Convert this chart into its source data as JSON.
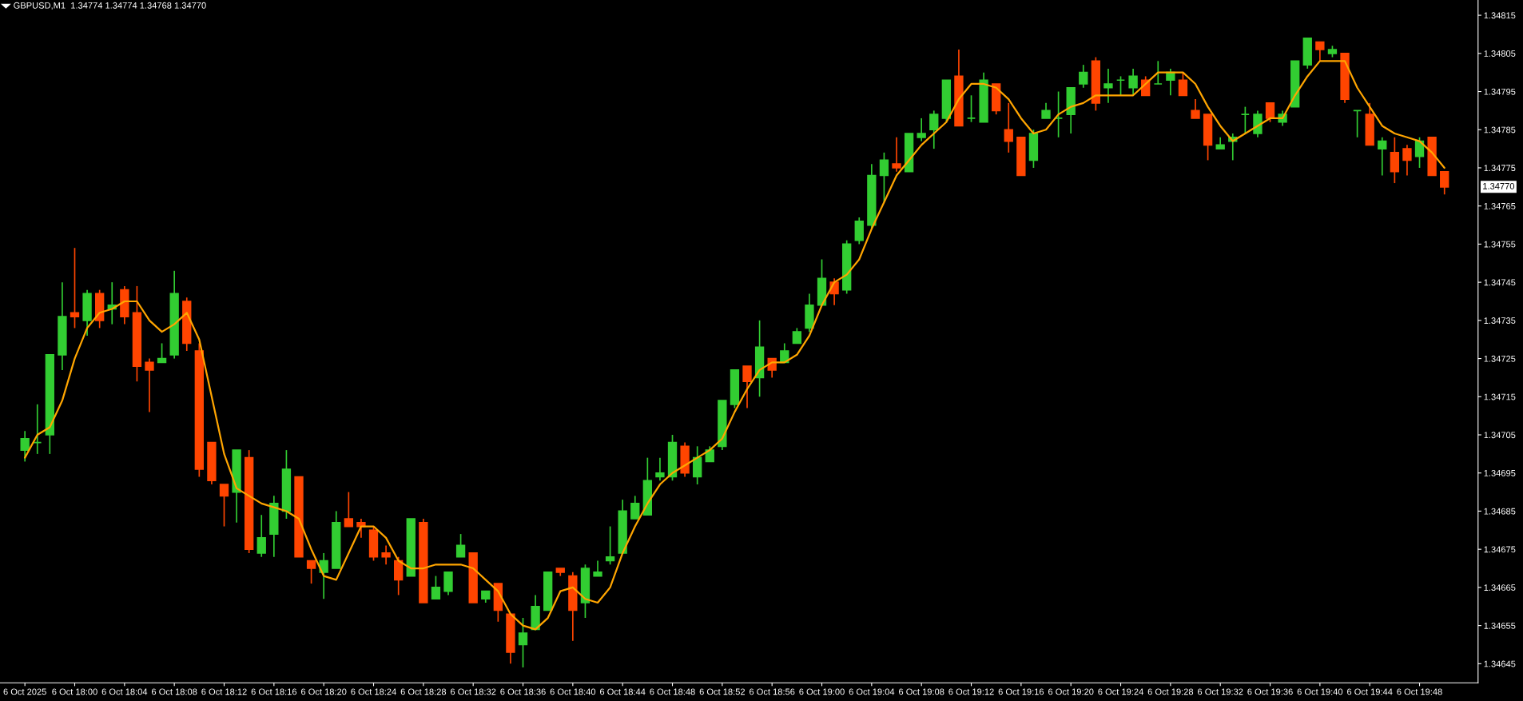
{
  "chart_data": {
    "type": "candlestick",
    "title": "GBPUSD,M1  1.34774 1.34774 1.34768 1.34770",
    "categories": [
      "6 Oct 2025",
      null,
      null,
      null,
      "6 Oct 18:00",
      null,
      null,
      null,
      "6 Oct 18:04",
      null,
      null,
      null,
      "6 Oct 18:08",
      null,
      null,
      null,
      "6 Oct 18:12",
      null,
      null,
      null,
      "6 Oct 18:16",
      null,
      null,
      null,
      "6 Oct 18:20",
      null,
      null,
      null,
      "6 Oct 18:24",
      null,
      null,
      null,
      "6 Oct 18:28",
      null,
      null,
      null,
      "6 Oct 18:32",
      null,
      null,
      null,
      "6 Oct 18:36",
      null,
      null,
      null,
      "6 Oct 18:40",
      null,
      null,
      null,
      "6 Oct 18:44",
      null,
      null,
      null,
      "6 Oct 18:48",
      null,
      null,
      null,
      "6 Oct 18:52",
      null,
      null,
      null,
      "6 Oct 18:56",
      null,
      null,
      null,
      "6 Oct 19:00",
      null,
      null,
      null,
      "6 Oct 19:04",
      null,
      null,
      null,
      "6 Oct 19:08",
      null,
      null,
      null,
      "6 Oct 19:12",
      null,
      null,
      null,
      "6 Oct 19:16",
      null,
      null,
      null,
      "6 Oct 19:20",
      null,
      null,
      null,
      "6 Oct 19:24",
      null,
      null,
      null,
      "6 Oct 19:28",
      null,
      null,
      null,
      "6 Oct 19:32",
      null,
      null,
      null,
      "6 Oct 19:36",
      null,
      null,
      null,
      "6 Oct 19:40",
      null,
      null,
      null,
      "6 Oct 19:44",
      null,
      null,
      null,
      "6 Oct 19:48",
      null,
      null
    ],
    "ohlc": [
      [
        1.34701,
        1.34706,
        1.34698,
        1.34704
      ],
      [
        1.34703,
        1.34713,
        1.347,
        1.34703
      ],
      [
        1.34705,
        1.34726,
        1.347,
        1.34726
      ],
      [
        1.34726,
        1.34745,
        1.34722,
        1.34736
      ],
      [
        1.34737,
        1.34754,
        1.34733,
        1.34736
      ],
      [
        1.34735,
        1.34743,
        1.34731,
        1.34742
      ],
      [
        1.34742,
        1.34743,
        1.34733,
        1.34735
      ],
      [
        1.34738,
        1.34745,
        1.34734,
        1.34739
      ],
      [
        1.34743,
        1.34744,
        1.34734,
        1.34736
      ],
      [
        1.34737,
        1.34744,
        1.34719,
        1.34723
      ],
      [
        1.34724,
        1.34725,
        1.34711,
        1.34722
      ],
      [
        1.34724,
        1.34729,
        1.34724,
        1.34725
      ],
      [
        1.34726,
        1.34748,
        1.34725,
        1.34742
      ],
      [
        1.3474,
        1.34741,
        1.34727,
        1.34729
      ],
      [
        1.34727,
        1.34729,
        1.34694,
        1.34696
      ],
      [
        1.34703,
        1.34703,
        1.34692,
        1.34693
      ],
      [
        1.34692,
        1.34692,
        1.34681,
        1.34689
      ],
      [
        1.3469,
        1.34701,
        1.34682,
        1.34701
      ],
      [
        1.34699,
        1.34701,
        1.34674,
        1.34675
      ],
      [
        1.34674,
        1.34684,
        1.34673,
        1.34678
      ],
      [
        1.34679,
        1.34689,
        1.34673,
        1.34687
      ],
      [
        1.34685,
        1.34701,
        1.34683,
        1.34696
      ],
      [
        1.34694,
        1.34694,
        1.34673,
        1.34673
      ],
      [
        1.34672,
        1.34672,
        1.34666,
        1.3467
      ],
      [
        1.34669,
        1.34674,
        1.34662,
        1.34672
      ],
      [
        1.3467,
        1.34685,
        1.3467,
        1.34682
      ],
      [
        1.34683,
        1.3469,
        1.34681,
        1.34681
      ],
      [
        1.34682,
        1.34683,
        1.34678,
        1.34681
      ],
      [
        1.3468,
        1.34681,
        1.34672,
        1.34673
      ],
      [
        1.34674,
        1.34676,
        1.34671,
        1.34673
      ],
      [
        1.34672,
        1.34673,
        1.34663,
        1.34667
      ],
      [
        1.34668,
        1.34683,
        1.34668,
        1.34683
      ],
      [
        1.34682,
        1.34683,
        1.34661,
        1.34661
      ],
      [
        1.34662,
        1.34668,
        1.34662,
        1.34665
      ],
      [
        1.34664,
        1.34669,
        1.34663,
        1.34669
      ],
      [
        1.34673,
        1.34679,
        1.34673,
        1.34676
      ],
      [
        1.34674,
        1.34674,
        1.34661,
        1.34661
      ],
      [
        1.34662,
        1.34664,
        1.34661,
        1.34664
      ],
      [
        1.34666,
        1.34666,
        1.34656,
        1.34659
      ],
      [
        1.34658,
        1.34658,
        1.34645,
        1.34648
      ],
      [
        1.3465,
        1.34657,
        1.34644,
        1.34653
      ],
      [
        1.34654,
        1.34663,
        1.34654,
        1.3466
      ],
      [
        1.34659,
        1.34669,
        1.34659,
        1.34669
      ],
      [
        1.3467,
        1.3467,
        1.34668,
        1.34669
      ],
      [
        1.34668,
        1.34669,
        1.34651,
        1.34659
      ],
      [
        1.34661,
        1.34671,
        1.34657,
        1.3467
      ],
      [
        1.34668,
        1.34672,
        1.34668,
        1.34669
      ],
      [
        1.34672,
        1.34681,
        1.34671,
        1.34673
      ],
      [
        1.34674,
        1.34688,
        1.34674,
        1.34685
      ],
      [
        1.34683,
        1.34689,
        1.34683,
        1.34687
      ],
      [
        1.34684,
        1.34699,
        1.34684,
        1.34693
      ],
      [
        1.34694,
        1.34699,
        1.34693,
        1.34695
      ],
      [
        1.34694,
        1.34705,
        1.34693,
        1.34703
      ],
      [
        1.34702,
        1.34703,
        1.34694,
        1.34695
      ],
      [
        1.34694,
        1.34702,
        1.34692,
        1.34699
      ],
      [
        1.34698,
        1.34702,
        1.34698,
        1.34701
      ],
      [
        1.34702,
        1.34714,
        1.34701,
        1.34714
      ],
      [
        1.34713,
        1.34722,
        1.34712,
        1.34722
      ],
      [
        1.34723,
        1.34723,
        1.34712,
        1.34719
      ],
      [
        1.3472,
        1.34735,
        1.34715,
        1.34728
      ],
      [
        1.34725,
        1.34725,
        1.3472,
        1.34722
      ],
      [
        1.34724,
        1.34729,
        1.34724,
        1.34727
      ],
      [
        1.34729,
        1.34733,
        1.34729,
        1.34732
      ],
      [
        1.34733,
        1.34742,
        1.34732,
        1.34739
      ],
      [
        1.34739,
        1.34751,
        1.34739,
        1.34746
      ],
      [
        1.34745,
        1.34746,
        1.34739,
        1.34742
      ],
      [
        1.34743,
        1.34756,
        1.34742,
        1.34755
      ],
      [
        1.34756,
        1.34762,
        1.34755,
        1.34761
      ],
      [
        1.3476,
        1.34776,
        1.34759,
        1.34773
      ],
      [
        1.34773,
        1.34779,
        1.34766,
        1.34777
      ],
      [
        1.34776,
        1.34783,
        1.34774,
        1.34775
      ],
      [
        1.34774,
        1.34784,
        1.34774,
        1.34784
      ],
      [
        1.34783,
        1.34788,
        1.34782,
        1.34784
      ],
      [
        1.34785,
        1.3479,
        1.3478,
        1.34789
      ],
      [
        1.34788,
        1.34798,
        1.34787,
        1.34798
      ],
      [
        1.34799,
        1.34806,
        1.34786,
        1.34786
      ],
      [
        1.34788,
        1.34794,
        1.34787,
        1.34788
      ],
      [
        1.34787,
        1.348,
        1.34787,
        1.34798
      ],
      [
        1.34797,
        1.34797,
        1.34789,
        1.3479
      ],
      [
        1.34785,
        1.34792,
        1.34779,
        1.34782
      ],
      [
        1.34783,
        1.34783,
        1.34773,
        1.34773
      ],
      [
        1.34777,
        1.34785,
        1.34775,
        1.34784
      ],
      [
        1.34788,
        1.34792,
        1.34788,
        1.3479
      ],
      [
        1.34788,
        1.34795,
        1.34783,
        1.34788
      ],
      [
        1.34789,
        1.34796,
        1.34784,
        1.34796
      ],
      [
        1.34797,
        1.34802,
        1.34796,
        1.348
      ],
      [
        1.34803,
        1.34804,
        1.3479,
        1.34792
      ],
      [
        1.34796,
        1.34801,
        1.34792,
        1.34797
      ],
      [
        1.34798,
        1.34799,
        1.34794,
        1.34798
      ],
      [
        1.34796,
        1.34801,
        1.34794,
        1.34799
      ],
      [
        1.34798,
        1.34799,
        1.34794,
        1.34794
      ],
      [
        1.34797,
        1.34803,
        1.34797,
        1.34797
      ],
      [
        1.34798,
        1.34801,
        1.34794,
        1.348
      ],
      [
        1.34798,
        1.348,
        1.34794,
        1.34794
      ],
      [
        1.3479,
        1.34793,
        1.34788,
        1.34788
      ],
      [
        1.34789,
        1.34789,
        1.34777,
        1.34781
      ],
      [
        1.3478,
        1.34783,
        1.3478,
        1.34781
      ],
      [
        1.34782,
        1.34784,
        1.34777,
        1.34783
      ],
      [
        1.34789,
        1.34791,
        1.34784,
        1.34789
      ],
      [
        1.34784,
        1.3479,
        1.34783,
        1.34789
      ],
      [
        1.34792,
        1.34792,
        1.34787,
        1.34788
      ],
      [
        1.34787,
        1.3479,
        1.34786,
        1.34789
      ],
      [
        1.34791,
        1.34803,
        1.34791,
        1.34803
      ],
      [
        1.34802,
        1.34809,
        1.34801,
        1.34809
      ],
      [
        1.34808,
        1.34808,
        1.34803,
        1.34806
      ],
      [
        1.34805,
        1.34807,
        1.34804,
        1.34806
      ],
      [
        1.34805,
        1.34805,
        1.34792,
        1.34793
      ],
      [
        1.3479,
        1.3479,
        1.34783,
        1.3479
      ],
      [
        1.34789,
        1.34792,
        1.34781,
        1.34781
      ],
      [
        1.3478,
        1.34783,
        1.34773,
        1.34782
      ],
      [
        1.34779,
        1.34783,
        1.34771,
        1.34774
      ],
      [
        1.3478,
        1.34781,
        1.34773,
        1.34777
      ],
      [
        1.34778,
        1.34783,
        1.34775,
        1.34782
      ],
      [
        1.34783,
        1.34783,
        1.34773,
        1.34773
      ],
      [
        1.34774,
        1.34774,
        1.34768,
        1.3477
      ]
    ],
    "colors": [
      "#32cd32",
      "#32cd32",
      "#32cd32",
      "#32cd32",
      "#ff4500",
      "#32cd32",
      "#ff4500",
      "#32cd32",
      "#ff4500",
      "#ff4500",
      "#ff4500",
      "#32cd32",
      "#32cd32",
      "#ff4500",
      "#ff4500",
      "#ff4500",
      "#ff4500",
      "#32cd32",
      "#ff4500",
      "#32cd32",
      "#32cd32",
      "#32cd32",
      "#ff4500",
      "#ff4500",
      "#32cd32",
      "#32cd32",
      "#ff4500",
      "#ff4500",
      "#ff4500",
      "#ff4500",
      "#ff4500",
      "#32cd32",
      "#ff4500",
      "#32cd32",
      "#32cd32",
      "#32cd32",
      "#ff4500",
      "#32cd32",
      "#ff4500",
      "#ff4500",
      "#32cd32",
      "#32cd32",
      "#32cd32",
      "#ff4500",
      "#ff4500",
      "#32cd32",
      "#32cd32",
      "#32cd32",
      "#32cd32",
      "#32cd32",
      "#32cd32",
      "#32cd32",
      "#32cd32",
      "#ff4500",
      "#32cd32",
      "#32cd32",
      "#32cd32",
      "#32cd32",
      "#ff4500",
      "#32cd32",
      "#ff4500",
      "#32cd32",
      "#32cd32",
      "#32cd32",
      "#32cd32",
      "#ff4500",
      "#32cd32",
      "#32cd32",
      "#32cd32",
      "#32cd32",
      "#ff4500",
      "#32cd32",
      "#32cd32",
      "#32cd32",
      "#32cd32",
      "#ff4500",
      "#32cd32",
      "#32cd32",
      "#ff4500",
      "#ff4500",
      "#ff4500",
      "#32cd32",
      "#32cd32",
      "#32cd32",
      "#32cd32",
      "#32cd32",
      "#ff4500",
      "#32cd32",
      "#32cd32",
      "#32cd32",
      "#ff4500",
      "#32cd32",
      "#32cd32",
      "#ff4500",
      "#ff4500",
      "#ff4500",
      "#32cd32",
      "#32cd32",
      "#32cd32",
      "#32cd32",
      "#ff4500",
      "#32cd32",
      "#32cd32",
      "#32cd32",
      "#ff4500",
      "#32cd32",
      "#ff4500",
      "#32cd32",
      "#ff4500",
      "#32cd32",
      "#ff4500",
      "#ff4500",
      "#32cd32",
      "#ff4500",
      "#ff4500"
    ],
    "series": [
      {
        "type": "line",
        "color": "#ffa500",
        "values": [
          1.34699,
          1.34705,
          1.34707,
          1.34714,
          1.34725,
          1.34733,
          1.34737,
          1.34738,
          1.3474,
          1.3474,
          1.34735,
          1.34732,
          1.34734,
          1.34737,
          1.3473,
          1.34715,
          1.347,
          1.34691,
          1.34689,
          1.34687,
          1.34686,
          1.34685,
          1.34683,
          1.34675,
          1.34668,
          1.34667,
          1.34674,
          1.34681,
          1.34681,
          1.34678,
          1.34672,
          1.3467,
          1.3467,
          1.34671,
          1.34671,
          1.34671,
          1.3467,
          1.34667,
          1.34664,
          1.34658,
          1.34655,
          1.34654,
          1.34657,
          1.34664,
          1.34665,
          1.34662,
          1.34661,
          1.34665,
          1.34674,
          1.34681,
          1.34687,
          1.34692,
          1.34695,
          1.34697,
          1.34699,
          1.34701,
          1.34704,
          1.34711,
          1.34717,
          1.34722,
          1.34724,
          1.34724,
          1.34726,
          1.34731,
          1.34739,
          1.34745,
          1.34747,
          1.34751,
          1.34759,
          1.34766,
          1.34773,
          1.34777,
          1.34781,
          1.34784,
          1.34787,
          1.34793,
          1.34797,
          1.34797,
          1.34796,
          1.34793,
          1.34788,
          1.34784,
          1.34785,
          1.34789,
          1.34791,
          1.34792,
          1.34794,
          1.34794,
          1.34794,
          1.34794,
          1.34797,
          1.348,
          1.348,
          1.348,
          1.34797,
          1.34791,
          1.34786,
          1.34782,
          1.34784,
          1.34786,
          1.34788,
          1.34788,
          1.34794,
          1.34799,
          1.34803,
          1.34803,
          1.34803,
          1.34796,
          1.34791,
          1.34786,
          1.34784,
          1.34783,
          1.34782,
          1.34779,
          1.34775
        ]
      }
    ],
    "ylim": [
      1.3464,
      1.34819
    ],
    "yticks": [
      1.34645,
      1.34655,
      1.34665,
      1.34675,
      1.34685,
      1.34695,
      1.34705,
      1.34715,
      1.34725,
      1.34735,
      1.34745,
      1.34755,
      1.34765,
      1.34775,
      1.34785,
      1.34795,
      1.34805,
      1.34815
    ],
    "annotations": [
      "1.34770"
    ],
    "grid": false,
    "legend": false
  }
}
